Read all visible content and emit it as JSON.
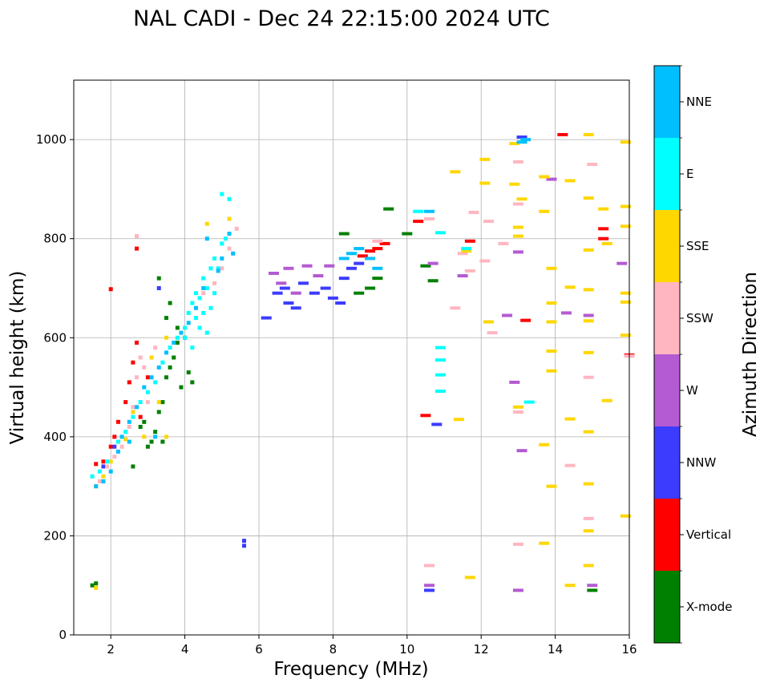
{
  "chart_data": {
    "type": "scatter",
    "title": "NAL CADI - Dec 24 22:15:00 2024 UTC",
    "xlabel": "Frequency (MHz)",
    "ylabel": "Virtual height (km)",
    "xlim": [
      1,
      16
    ],
    "ylim": [
      0,
      1120
    ],
    "xticks": [
      "2",
      "4",
      "6",
      "8",
      "10",
      "12",
      "14",
      "16"
    ],
    "yticks": [
      "0",
      "200",
      "400",
      "600",
      "800",
      "1000"
    ],
    "grid": true,
    "colorbar": {
      "label": "Azimuth Direction",
      "categories": [
        {
          "name": "X-mode",
          "color": "#008000"
        },
        {
          "name": "Vertical",
          "color": "#ff0000"
        },
        {
          "name": "NNW",
          "color": "#3c3cff"
        },
        {
          "name": "W",
          "color": "#b45ad2"
        },
        {
          "name": "SSW",
          "color": "#ffb6c1"
        },
        {
          "name": "SSE",
          "color": "#ffd700"
        },
        {
          "name": "E",
          "color": "#00ffff"
        },
        {
          "name": "NNE",
          "color": "#00bfff"
        }
      ]
    },
    "series": [
      {
        "name": "X-mode",
        "points": [
          [
            1.5,
            100
          ],
          [
            1.6,
            104
          ],
          [
            2.6,
            340
          ],
          [
            2.8,
            420
          ],
          [
            2.9,
            430
          ],
          [
            3.0,
            380
          ],
          [
            3.1,
            390
          ],
          [
            3.2,
            410
          ],
          [
            3.3,
            450
          ],
          [
            3.4,
            470
          ],
          [
            3.5,
            520
          ],
          [
            3.6,
            540
          ],
          [
            3.7,
            560
          ],
          [
            3.8,
            590
          ],
          [
            3.5,
            640
          ],
          [
            3.6,
            670
          ],
          [
            3.8,
            620
          ],
          [
            4.0,
            600
          ],
          [
            4.1,
            530
          ],
          [
            4.2,
            510
          ],
          [
            8.3,
            810
          ],
          [
            8.7,
            690
          ],
          [
            9.0,
            700
          ],
          [
            9.2,
            720
          ],
          [
            9.5,
            860
          ],
          [
            10.0,
            810
          ],
          [
            10.5,
            745
          ],
          [
            10.7,
            715
          ],
          [
            15.0,
            90
          ],
          [
            3.4,
            390
          ],
          [
            3.9,
            500
          ],
          [
            3.3,
            720
          ]
        ]
      },
      {
        "name": "Vertical",
        "points": [
          [
            1.6,
            345
          ],
          [
            1.8,
            350
          ],
          [
            2.0,
            380
          ],
          [
            2.1,
            400
          ],
          [
            2.2,
            430
          ],
          [
            2.4,
            470
          ],
          [
            2.5,
            510
          ],
          [
            2.6,
            550
          ],
          [
            2.7,
            590
          ],
          [
            2.7,
            780
          ],
          [
            2.0,
            698
          ],
          [
            3.0,
            520
          ],
          [
            2.8,
            440
          ],
          [
            8.8,
            765
          ],
          [
            9.0,
            775
          ],
          [
            9.2,
            780
          ],
          [
            9.4,
            790
          ],
          [
            10.3,
            835
          ],
          [
            10.5,
            443
          ],
          [
            11.7,
            795
          ],
          [
            13.2,
            635
          ],
          [
            14.2,
            1010
          ],
          [
            15.3,
            820
          ],
          [
            15.3,
            800
          ],
          [
            16.0,
            565
          ]
        ]
      },
      {
        "name": "NNW",
        "points": [
          [
            5.6,
            190
          ],
          [
            5.6,
            180
          ],
          [
            6.2,
            640
          ],
          [
            6.5,
            690
          ],
          [
            6.7,
            700
          ],
          [
            6.8,
            670
          ],
          [
            7.0,
            660
          ],
          [
            7.2,
            710
          ],
          [
            7.5,
            690
          ],
          [
            7.8,
            700
          ],
          [
            8.0,
            680
          ],
          [
            8.2,
            670
          ],
          [
            8.3,
            720
          ],
          [
            8.5,
            740
          ],
          [
            8.7,
            750
          ],
          [
            10.6,
            90
          ],
          [
            10.8,
            425
          ],
          [
            13.1,
            1005
          ],
          [
            3.3,
            700
          ],
          [
            2.1,
            380
          ],
          [
            1.8,
            340
          ]
        ]
      },
      {
        "name": "W",
        "points": [
          [
            6.4,
            730
          ],
          [
            6.6,
            710
          ],
          [
            6.8,
            740
          ],
          [
            7.0,
            690
          ],
          [
            7.3,
            745
          ],
          [
            7.6,
            725
          ],
          [
            7.9,
            745
          ],
          [
            10.6,
            100
          ],
          [
            10.7,
            750
          ],
          [
            11.5,
            725
          ],
          [
            12.7,
            645
          ],
          [
            12.9,
            510
          ],
          [
            13.0,
            90
          ],
          [
            13.0,
            773
          ],
          [
            13.1,
            372
          ],
          [
            14.3,
            650
          ],
          [
            14.9,
            645
          ],
          [
            15.0,
            100
          ],
          [
            15.8,
            750
          ],
          [
            13.9,
            920
          ]
        ]
      },
      {
        "name": "SSW",
        "points": [
          [
            1.7,
            310
          ],
          [
            1.9,
            340
          ],
          [
            2.1,
            360
          ],
          [
            2.3,
            380
          ],
          [
            2.5,
            420
          ],
          [
            2.6,
            460
          ],
          [
            2.7,
            520
          ],
          [
            2.8,
            560
          ],
          [
            2.7,
            805
          ],
          [
            2.9,
            540
          ],
          [
            3.0,
            470
          ],
          [
            3.2,
            580
          ],
          [
            4.5,
            690
          ],
          [
            4.8,
            710
          ],
          [
            5.0,
            740
          ],
          [
            5.2,
            780
          ],
          [
            5.4,
            820
          ],
          [
            9.2,
            795
          ],
          [
            10.6,
            840
          ],
          [
            10.6,
            140
          ],
          [
            11.3,
            660
          ],
          [
            11.5,
            770
          ],
          [
            11.7,
            735
          ],
          [
            11.8,
            853
          ],
          [
            12.1,
            755
          ],
          [
            12.2,
            835
          ],
          [
            12.3,
            610
          ],
          [
            12.6,
            790
          ],
          [
            13.0,
            955
          ],
          [
            13.0,
            870
          ],
          [
            13.0,
            450
          ],
          [
            13.0,
            183
          ],
          [
            14.4,
            342
          ],
          [
            14.9,
            520
          ],
          [
            14.9,
            235
          ],
          [
            15.0,
            950
          ],
          [
            16.0,
            563
          ]
        ]
      },
      {
        "name": "SSE",
        "points": [
          [
            1.6,
            95
          ],
          [
            1.6,
            300
          ],
          [
            1.8,
            320
          ],
          [
            2.0,
            350
          ],
          [
            2.4,
            395
          ],
          [
            2.6,
            450
          ],
          [
            2.9,
            400
          ],
          [
            3.1,
            560
          ],
          [
            3.3,
            470
          ],
          [
            3.5,
            400
          ],
          [
            3.5,
            600
          ],
          [
            4.6,
            830
          ],
          [
            5.2,
            840
          ],
          [
            11.3,
            935
          ],
          [
            11.4,
            435
          ],
          [
            11.6,
            775
          ],
          [
            11.7,
            116
          ],
          [
            12.1,
            960
          ],
          [
            12.1,
            912
          ],
          [
            12.2,
            632
          ],
          [
            12.9,
            992
          ],
          [
            12.9,
            910
          ],
          [
            13.0,
            823
          ],
          [
            13.0,
            805
          ],
          [
            13.0,
            460
          ],
          [
            13.1,
            880
          ],
          [
            13.7,
            925
          ],
          [
            13.7,
            855
          ],
          [
            13.7,
            384
          ],
          [
            13.7,
            185
          ],
          [
            13.9,
            740
          ],
          [
            13.9,
            670
          ],
          [
            13.9,
            632
          ],
          [
            13.9,
            573
          ],
          [
            13.9,
            533
          ],
          [
            13.9,
            300
          ],
          [
            14.4,
            917
          ],
          [
            14.4,
            702
          ],
          [
            14.4,
            436
          ],
          [
            14.4,
            100
          ],
          [
            14.9,
            1010
          ],
          [
            14.9,
            882
          ],
          [
            14.9,
            777
          ],
          [
            14.9,
            697
          ],
          [
            14.9,
            634
          ],
          [
            14.9,
            570
          ],
          [
            14.9,
            410
          ],
          [
            14.9,
            305
          ],
          [
            14.9,
            210
          ],
          [
            14.9,
            140
          ],
          [
            15.3,
            860
          ],
          [
            15.4,
            790
          ],
          [
            15.4,
            473
          ],
          [
            15.9,
            995
          ],
          [
            15.9,
            865
          ],
          [
            15.9,
            825
          ],
          [
            15.9,
            690
          ],
          [
            15.9,
            672
          ],
          [
            15.9,
            605
          ],
          [
            15.9,
            240
          ]
        ]
      },
      {
        "name": "E",
        "points": [
          [
            1.5,
            320
          ],
          [
            1.7,
            330
          ],
          [
            1.9,
            350
          ],
          [
            2.2,
            390
          ],
          [
            2.4,
            410
          ],
          [
            2.6,
            440
          ],
          [
            2.8,
            470
          ],
          [
            3.0,
            490
          ],
          [
            3.2,
            510
          ],
          [
            3.4,
            550
          ],
          [
            3.6,
            580
          ],
          [
            3.8,
            600
          ],
          [
            4.0,
            600
          ],
          [
            4.0,
            620
          ],
          [
            4.1,
            650
          ],
          [
            4.2,
            670
          ],
          [
            4.3,
            690
          ],
          [
            4.4,
            680
          ],
          [
            4.5,
            720
          ],
          [
            4.6,
            700
          ],
          [
            4.7,
            740
          ],
          [
            4.8,
            760
          ],
          [
            4.9,
            740
          ],
          [
            5.0,
            790
          ],
          [
            5.1,
            800
          ],
          [
            5.2,
            880
          ],
          [
            5.0,
            890
          ],
          [
            4.7,
            660
          ],
          [
            4.5,
            650
          ],
          [
            4.3,
            640
          ],
          [
            4.2,
            580
          ],
          [
            4.4,
            620
          ],
          [
            4.6,
            610
          ],
          [
            4.8,
            690
          ],
          [
            10.3,
            855
          ],
          [
            10.9,
            812
          ],
          [
            10.9,
            580
          ],
          [
            10.9,
            555
          ],
          [
            10.9,
            525
          ],
          [
            10.9,
            492
          ],
          [
            11.6,
            780
          ],
          [
            13.3,
            470
          ]
        ]
      },
      {
        "name": "NNE",
        "points": [
          [
            1.6,
            300
          ],
          [
            1.8,
            310
          ],
          [
            2.0,
            330
          ],
          [
            2.2,
            370
          ],
          [
            2.3,
            400
          ],
          [
            2.5,
            430
          ],
          [
            2.7,
            460
          ],
          [
            2.9,
            500
          ],
          [
            3.1,
            520
          ],
          [
            3.3,
            540
          ],
          [
            3.5,
            570
          ],
          [
            3.7,
            590
          ],
          [
            3.9,
            610
          ],
          [
            4.1,
            630
          ],
          [
            4.3,
            660
          ],
          [
            4.5,
            700
          ],
          [
            5.0,
            760
          ],
          [
            5.2,
            810
          ],
          [
            5.3,
            770
          ],
          [
            8.3,
            760
          ],
          [
            8.5,
            770
          ],
          [
            8.7,
            780
          ],
          [
            9.0,
            760
          ],
          [
            9.2,
            740
          ],
          [
            10.6,
            855
          ],
          [
            13.2,
            1000
          ],
          [
            13.1,
            995
          ],
          [
            4.9,
            735
          ],
          [
            4.6,
            800
          ],
          [
            3.2,
            400
          ],
          [
            2.5,
            390
          ]
        ]
      }
    ]
  }
}
